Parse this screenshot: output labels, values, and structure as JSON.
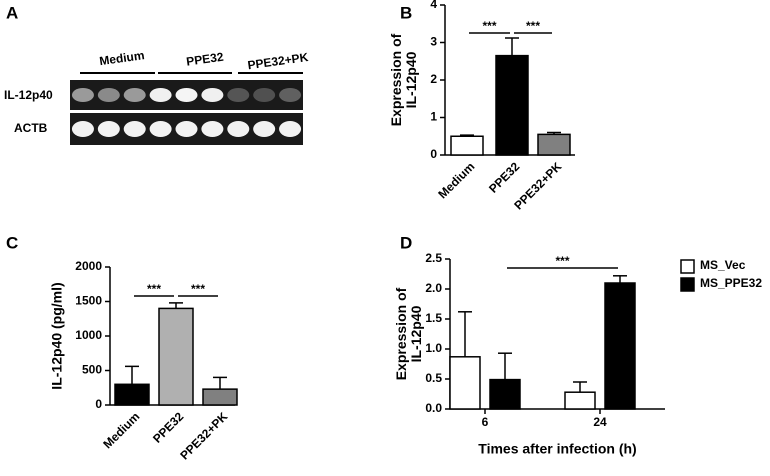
{
  "gel": {
    "label": "A",
    "groups": [
      "Medium",
      "PPE32",
      "PPE32+PK"
    ],
    "rows": [
      "IL-12p40",
      "ACTB"
    ]
  },
  "chart_data": [
    {
      "type": "bar",
      "label": "B",
      "ylabel": [
        "Expression of",
        "IL-12p40"
      ],
      "categories": [
        "Medium",
        "PPE32",
        "PPE32+PK"
      ],
      "values": [
        0.5,
        2.65,
        0.55
      ],
      "errors": [
        0.03,
        0.47,
        0.05
      ],
      "colors": [
        "#ffffff",
        "#000000",
        "#808080"
      ],
      "ylim": [
        0,
        4
      ],
      "yticks": [
        0,
        1,
        2,
        3,
        4
      ],
      "annotations": [
        "***",
        "***"
      ]
    },
    {
      "type": "bar",
      "label": "C",
      "ylabel": [
        "IL-12p40 (pg/ml)"
      ],
      "categories": [
        "Medium",
        "PPE32",
        "PPE32+PK"
      ],
      "values": [
        300,
        1400,
        230
      ],
      "errors": [
        260,
        80,
        170
      ],
      "colors": [
        "#000000",
        "#b0b0b0",
        "#808080"
      ],
      "ylim": [
        0,
        2000
      ],
      "yticks": [
        0,
        500,
        1000,
        1500,
        2000
      ],
      "annotations": [
        "***",
        "***"
      ]
    },
    {
      "type": "grouped_bar",
      "label": "D",
      "ylabel": [
        "Expression of",
        "IL-12p40"
      ],
      "xlabel": "Times after infection (h)",
      "categories": [
        "6",
        "24"
      ],
      "series": [
        {
          "name": "MS_Vec",
          "color": "#ffffff",
          "values": [
            0.87,
            0.28
          ],
          "errors": [
            0.75,
            0.17
          ]
        },
        {
          "name": "MS_PPE32",
          "color": "#000000",
          "values": [
            0.49,
            2.1
          ],
          "errors": [
            0.44,
            0.12
          ]
        }
      ],
      "ylim": [
        0,
        2.5
      ],
      "yticks": [
        {
          "value": 0,
          "label": "0.0"
        },
        0.5,
        {
          "value": 1,
          "label": "1.0"
        },
        1.5,
        {
          "value": 2,
          "label": "2.0"
        },
        2.5
      ],
      "legend": "upper right",
      "annotations": [
        "***"
      ]
    }
  ]
}
